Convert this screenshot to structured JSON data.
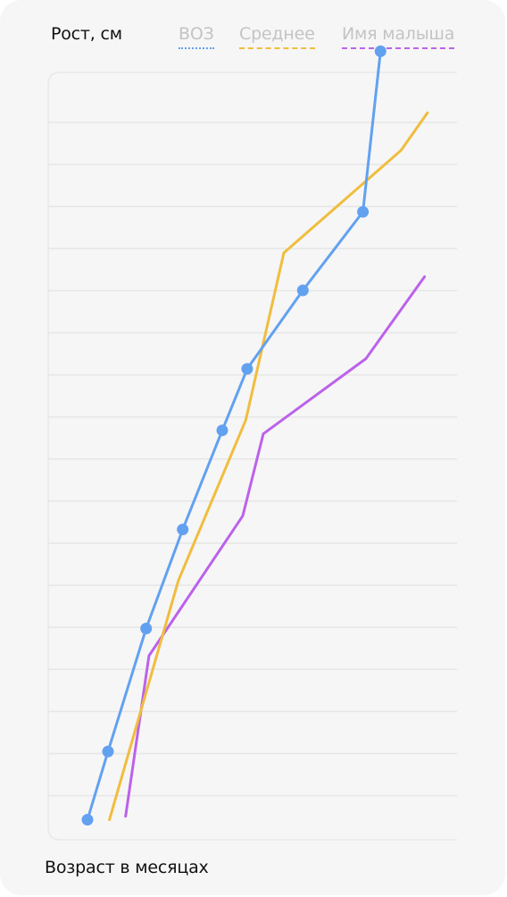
{
  "chart_data": {
    "type": "line",
    "ylabel": "Рост, см",
    "xlabel": "Возраст в месяцах",
    "legend_position": "top",
    "grid": "horizontal",
    "x": [
      0,
      1,
      2,
      3,
      4,
      5,
      6,
      8,
      10,
      12
    ],
    "xlim": [
      0,
      12
    ],
    "ylim": [
      0,
      11
    ],
    "series": [
      {
        "name": "ВОЗ",
        "color": "#62a1f0",
        "markers": true,
        "legend_style": "dotted",
        "points": [
          [
            0.0,
            0.15
          ],
          [
            0.7,
            1.15
          ],
          [
            2.0,
            2.95
          ],
          [
            3.25,
            4.4
          ],
          [
            4.6,
            5.85
          ],
          [
            5.45,
            6.75
          ],
          [
            7.35,
            7.9
          ],
          [
            9.4,
            9.05
          ],
          [
            10.0,
            11.4
          ]
        ]
      },
      {
        "name": "Среднее",
        "color": "#f0bd3e",
        "markers": false,
        "legend_style": "dashed",
        "points": [
          [
            0.75,
            0.15
          ],
          [
            3.1,
            3.65
          ],
          [
            5.4,
            6.0
          ],
          [
            6.7,
            8.45
          ],
          [
            10.7,
            9.95
          ],
          [
            11.6,
            10.5
          ]
        ]
      },
      {
        "name": "Имя малыша",
        "color": "#bc62eb",
        "markers": false,
        "legend_style": "dashed",
        "points": [
          [
            1.3,
            0.2
          ],
          [
            2.1,
            2.55
          ],
          [
            5.3,
            4.6
          ],
          [
            6.0,
            5.8
          ],
          [
            9.5,
            6.9
          ],
          [
            11.5,
            8.1
          ]
        ]
      }
    ]
  }
}
